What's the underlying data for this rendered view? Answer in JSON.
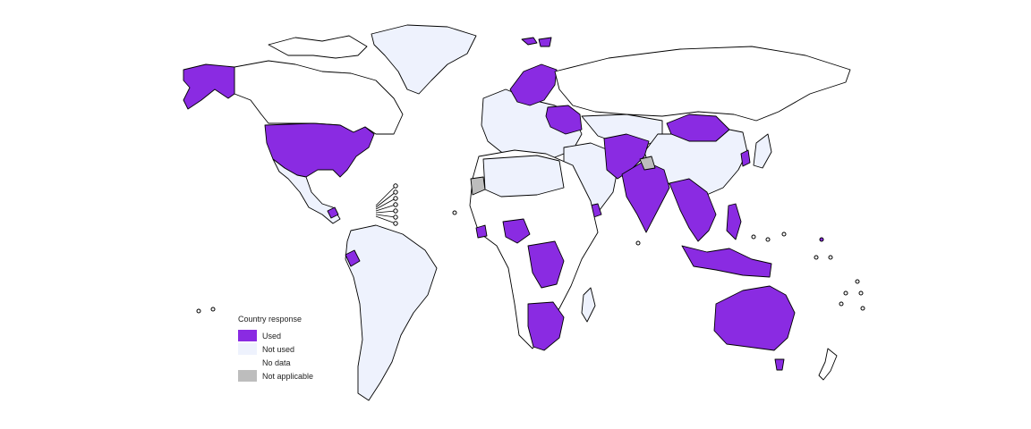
{
  "legend": {
    "title": "Country response",
    "items": [
      {
        "label": "Used",
        "color": "#8a2be2"
      },
      {
        "label": "Not used",
        "color": "#eef2fd"
      },
      {
        "label": "No data",
        "color": "#ffffff"
      },
      {
        "label": "Not applicable",
        "color": "#bdbdbd"
      }
    ]
  },
  "map": {
    "projection": "world equirectangular-like",
    "categories": {
      "used": [
        "Alaska (USA)",
        "United States",
        "Norway",
        "Sweden",
        "Finland",
        "Belarus",
        "Ukraine",
        "Mongolia",
        "Iran",
        "Afghanistan",
        "Pakistan",
        "India",
        "Myanmar",
        "Thailand",
        "Viet Nam",
        "Philippines",
        "Malaysia",
        "Indonesia",
        "Papua New Guinea",
        "Australia",
        "Saudi Arabia (part)",
        "Yemen",
        "Nigeria",
        "Sierra Leone",
        "Liberia",
        "Ghana",
        "Democratic Republic of the Congo",
        "Zambia",
        "Botswana",
        "Namibia",
        "South Africa",
        "Ecuador",
        "Panama",
        "Republic of Korea",
        "Svalbard"
      ],
      "not_applicable": [
        "Western Sahara",
        "Kashmir region"
      ]
    }
  }
}
